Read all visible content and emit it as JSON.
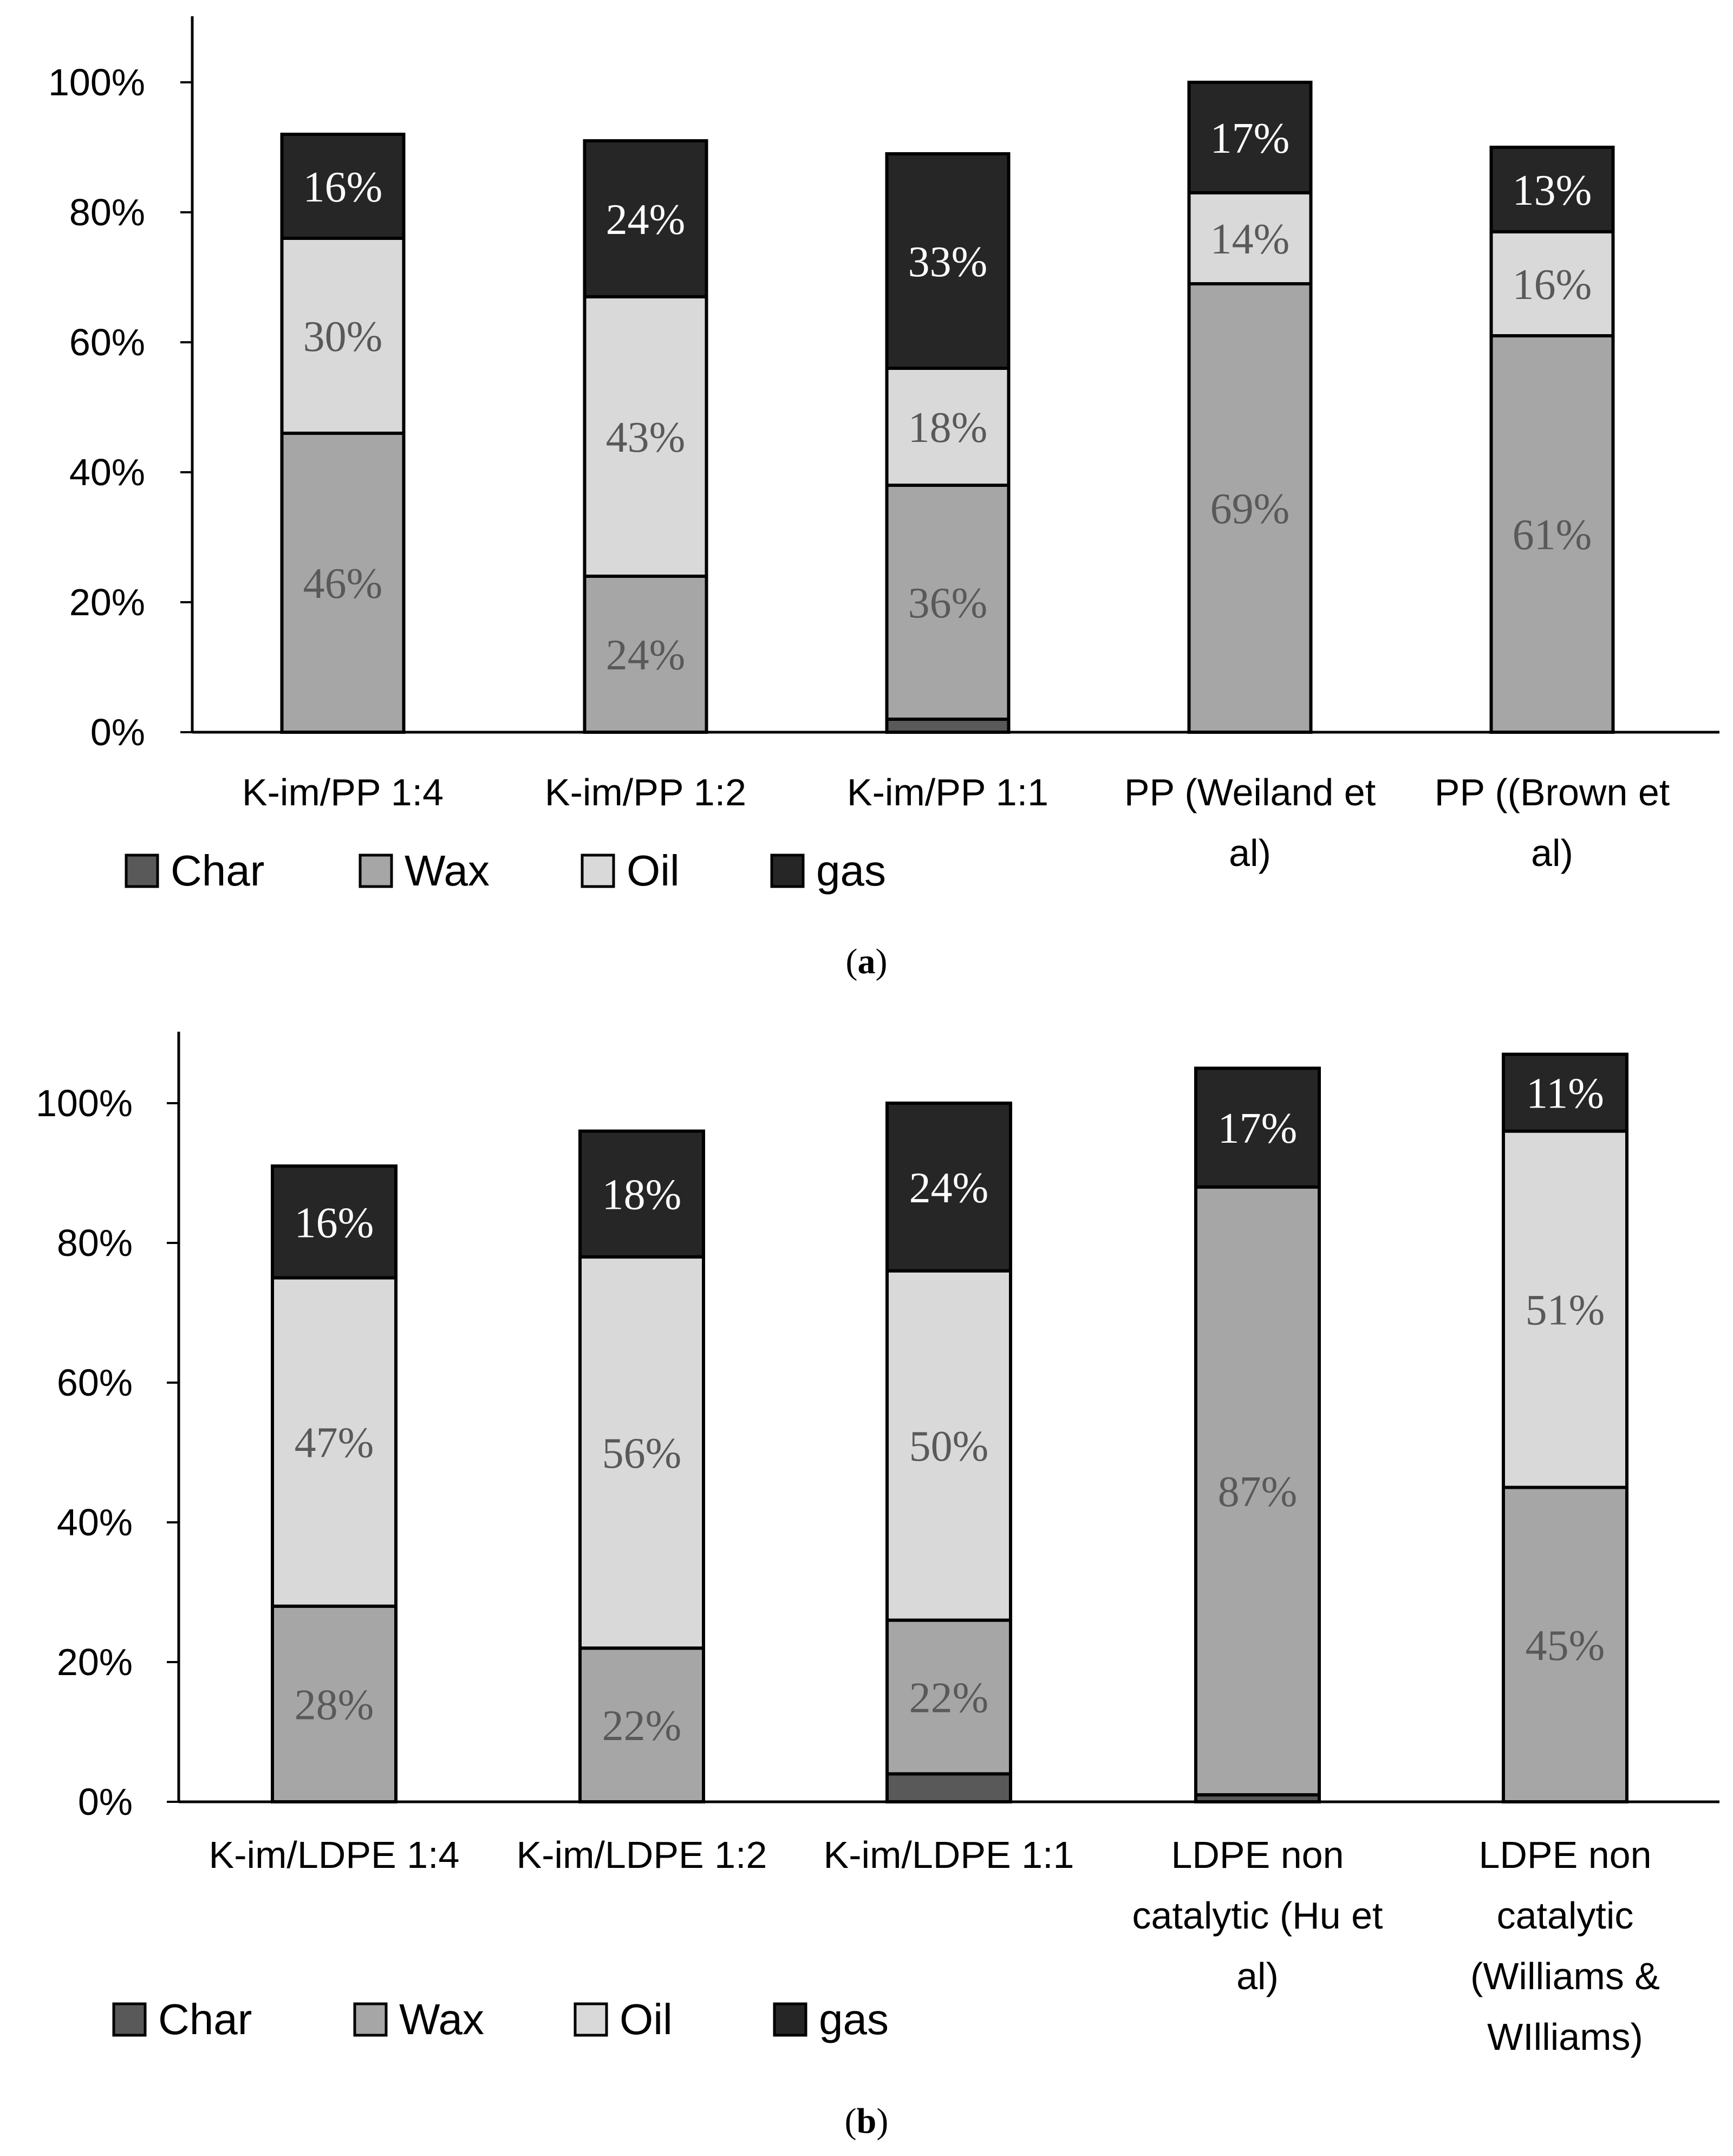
{
  "chart_data": [
    {
      "type": "bar",
      "stacked": true,
      "caption": "a",
      "ylim": [
        0,
        1.1
      ],
      "yticks": [
        "0%",
        "20%",
        "40%",
        "60%",
        "80%",
        "100%"
      ],
      "ytick_values": [
        0,
        0.2,
        0.4,
        0.6,
        0.8,
        1.0
      ],
      "categories": [
        [
          "K-im/PP 1:4"
        ],
        [
          "K-im/PP 1:2"
        ],
        [
          "K-im/PP 1:1"
        ],
        [
          "PP (Weiland et",
          "al)"
        ],
        [
          "PP ((Brown et",
          "al)"
        ]
      ],
      "series": [
        {
          "name": "Char",
          "color": "#595959",
          "text_color": "#ffffff",
          "values": [
            0,
            0,
            0.02,
            0,
            0
          ],
          "labels": [
            "",
            "",
            "",
            "",
            ""
          ]
        },
        {
          "name": "Wax",
          "color": "#a6a6a6",
          "text_color": "#595959",
          "values": [
            0.46,
            0.24,
            0.36,
            0.69,
            0.61
          ],
          "labels": [
            "46%",
            "24%",
            "36%",
            "69%",
            "61%"
          ]
        },
        {
          "name": "Oil",
          "color": "#d9d9d9",
          "text_color": "#595959",
          "values": [
            0.3,
            0.43,
            0.18,
            0.14,
            0.16
          ],
          "labels": [
            "30%",
            "43%",
            "18%",
            "14%",
            "16%"
          ]
        },
        {
          "name": "gas",
          "color": "#262626",
          "text_color": "#ffffff",
          "values": [
            0.16,
            0.24,
            0.33,
            0.17,
            0.13
          ],
          "labels": [
            "16%",
            "24%",
            "33%",
            "17%",
            "13%"
          ]
        }
      ],
      "legend": [
        "Char",
        "Wax",
        "Oil",
        "gas"
      ]
    },
    {
      "type": "bar",
      "stacked": true,
      "caption": "b",
      "ylim": [
        0,
        1.1
      ],
      "yticks": [
        "0%",
        "20%",
        "40%",
        "60%",
        "80%",
        "100%"
      ],
      "ytick_values": [
        0,
        0.2,
        0.4,
        0.6,
        0.8,
        1.0
      ],
      "categories": [
        [
          "K-im/LDPE 1:4"
        ],
        [
          "K-im/LDPE 1:2"
        ],
        [
          "K-im/LDPE 1:1"
        ],
        [
          "LDPE non",
          "catalytic (Hu et",
          "al)"
        ],
        [
          "LDPE non",
          "catalytic",
          "(Williams &",
          "WIlliams)"
        ]
      ],
      "series": [
        {
          "name": "Char",
          "color": "#595959",
          "text_color": "#ffffff",
          "values": [
            0,
            0,
            0.04,
            0.01,
            0
          ],
          "labels": [
            "",
            "",
            "",
            "",
            ""
          ]
        },
        {
          "name": "Wax",
          "color": "#a6a6a6",
          "text_color": "#595959",
          "values": [
            0.28,
            0.22,
            0.22,
            0.87,
            0.45
          ],
          "labels": [
            "28%",
            "22%",
            "22%",
            "87%",
            "45%"
          ]
        },
        {
          "name": "Oil",
          "color": "#d9d9d9",
          "text_color": "#595959",
          "values": [
            0.47,
            0.56,
            0.5,
            0,
            0.51
          ],
          "labels": [
            "47%",
            "56%",
            "50%",
            "",
            "51%"
          ]
        },
        {
          "name": "gas",
          "color": "#262626",
          "text_color": "#ffffff",
          "values": [
            0.16,
            0.18,
            0.24,
            0.17,
            0.11
          ],
          "labels": [
            "16%",
            "18%",
            "24%",
            "17%",
            "11%"
          ]
        }
      ],
      "legend": [
        "Char",
        "Wax",
        "Oil",
        "gas"
      ]
    }
  ]
}
